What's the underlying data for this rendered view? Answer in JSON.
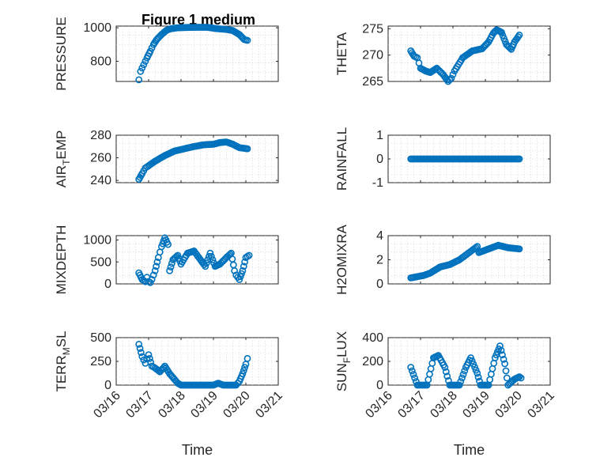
{
  "figure_title": "Figure 1 medium",
  "marker_color": "#0072BD",
  "chart_data": [
    {
      "type": "scatter",
      "panel": "pressure",
      "ylabel": "PRESSURE",
      "ylabel_sub": "",
      "ylabel_tail": "",
      "xlabel": "",
      "ylim": [
        680,
        1010
      ],
      "yticks": [
        800,
        1000
      ],
      "xlim": [
        0,
        5
      ],
      "show_xticklabels": false,
      "key": [
        [
          0.7,
          690
        ],
        [
          0.75,
          740
        ],
        [
          0.85,
          780
        ],
        [
          0.95,
          820
        ],
        [
          1.05,
          860
        ],
        [
          1.15,
          900
        ],
        [
          1.25,
          930
        ],
        [
          1.4,
          960
        ],
        [
          1.55,
          985
        ],
        [
          1.7,
          995
        ],
        [
          1.9,
          1000
        ],
        [
          2.2,
          1002
        ],
        [
          2.5,
          1003
        ],
        [
          2.8,
          1003
        ],
        [
          3.1,
          995
        ],
        [
          3.4,
          990
        ],
        [
          3.6,
          983
        ],
        [
          3.8,
          960
        ],
        [
          3.95,
          930
        ],
        [
          4.05,
          925
        ]
      ]
    },
    {
      "type": "scatter",
      "panel": "theta",
      "ylabel": "THETA",
      "ylabel_sub": "",
      "ylabel_tail": "",
      "xlabel": "",
      "ylim": [
        265,
        275.5
      ],
      "yticks": [
        265,
        270,
        275
      ],
      "xlim": [
        0,
        5
      ],
      "show_xticklabels": false,
      "key": [
        [
          0.7,
          270.8
        ],
        [
          0.8,
          269.8
        ],
        [
          0.9,
          269.5
        ],
        [
          1.0,
          267.5
        ],
        [
          1.15,
          267.0
        ],
        [
          1.3,
          266.7
        ],
        [
          1.5,
          267.5
        ],
        [
          1.7,
          266.3
        ],
        [
          1.85,
          265.0
        ],
        [
          1.95,
          265.6
        ],
        [
          2.05,
          267.0
        ],
        [
          2.3,
          269.5
        ],
        [
          2.6,
          270.8
        ],
        [
          2.9,
          271.2
        ],
        [
          3.1,
          272.5
        ],
        [
          3.25,
          274.2
        ],
        [
          3.35,
          274.8
        ],
        [
          3.5,
          274.3
        ],
        [
          3.65,
          272.0
        ],
        [
          3.8,
          271.1
        ],
        [
          3.9,
          272.5
        ],
        [
          4.05,
          273.8
        ]
      ]
    },
    {
      "type": "scatter",
      "panel": "air_temp",
      "ylabel": "AIR",
      "ylabel_sub": "T",
      "ylabel_tail": "EMP",
      "xlabel": "",
      "ylim": [
        238,
        280
      ],
      "yticks": [
        240,
        260,
        280
      ],
      "xlim": [
        0,
        5
      ],
      "show_xticklabels": false,
      "key": [
        [
          0.7,
          241
        ],
        [
          0.8,
          246
        ],
        [
          0.9,
          251
        ],
        [
          1.0,
          253
        ],
        [
          1.2,
          257
        ],
        [
          1.5,
          262
        ],
        [
          1.8,
          266
        ],
        [
          2.1,
          268
        ],
        [
          2.4,
          270
        ],
        [
          2.7,
          271.5
        ],
        [
          3.0,
          272
        ],
        [
          3.2,
          273.5
        ],
        [
          3.4,
          274
        ],
        [
          3.6,
          272
        ],
        [
          3.8,
          269
        ],
        [
          4.05,
          268
        ]
      ]
    },
    {
      "type": "scatter",
      "panel": "rainfall",
      "ylabel": "RAINFALL",
      "ylabel_sub": "",
      "ylabel_tail": "",
      "xlabel": "",
      "ylim": [
        -1,
        1
      ],
      "yticks": [
        -1,
        0,
        1
      ],
      "xlim": [
        0,
        5
      ],
      "show_xticklabels": false,
      "key": [
        [
          0.7,
          0
        ],
        [
          4.05,
          0
        ]
      ]
    },
    {
      "type": "scatter",
      "panel": "mixdepth",
      "ylabel": "MIXDEPTH",
      "ylabel_sub": "",
      "ylabel_tail": "",
      "xlabel": "",
      "ylim": [
        0,
        1100
      ],
      "yticks": [
        0,
        500,
        1000
      ],
      "xlim": [
        0,
        5
      ],
      "show_xticklabels": false,
      "key": [
        [
          0.7,
          250
        ],
        [
          0.8,
          100
        ],
        [
          0.9,
          50
        ],
        [
          0.95,
          150
        ],
        [
          1.0,
          50
        ],
        [
          1.05,
          30
        ],
        [
          1.1,
          100
        ],
        [
          1.2,
          300
        ],
        [
          1.3,
          600
        ],
        [
          1.4,
          850
        ],
        [
          1.5,
          1050
        ],
        [
          1.6,
          900
        ],
        [
          1.65,
          300
        ],
        [
          1.75,
          550
        ],
        [
          1.9,
          650
        ],
        [
          2.0,
          450
        ],
        [
          2.2,
          700
        ],
        [
          2.4,
          750
        ],
        [
          2.6,
          550
        ],
        [
          2.75,
          400
        ],
        [
          2.9,
          700
        ],
        [
          3.05,
          400
        ],
        [
          3.2,
          450
        ],
        [
          3.4,
          600
        ],
        [
          3.55,
          700
        ],
        [
          3.65,
          300
        ],
        [
          3.7,
          200
        ],
        [
          3.8,
          100
        ],
        [
          3.9,
          300
        ],
        [
          4.0,
          600
        ],
        [
          4.1,
          650
        ]
      ]
    },
    {
      "type": "scatter",
      "panel": "h2omixra",
      "ylabel": "H2OMIXRA",
      "ylabel_sub": "",
      "ylabel_tail": "",
      "xlabel": "",
      "ylim": [
        0,
        4
      ],
      "yticks": [
        0,
        2,
        4
      ],
      "xlim": [
        0,
        5
      ],
      "show_xticklabels": false,
      "key": [
        [
          0.7,
          0.5
        ],
        [
          0.9,
          0.6
        ],
        [
          1.1,
          0.7
        ],
        [
          1.3,
          0.9
        ],
        [
          1.6,
          1.4
        ],
        [
          1.9,
          1.6
        ],
        [
          2.2,
          2.0
        ],
        [
          2.5,
          2.6
        ],
        [
          2.75,
          3.1
        ],
        [
          2.8,
          2.6
        ],
        [
          3.1,
          2.9
        ],
        [
          3.4,
          3.2
        ],
        [
          3.7,
          3.0
        ],
        [
          4.05,
          2.9
        ]
      ]
    },
    {
      "type": "scatter",
      "panel": "terr_msl",
      "ylabel": "TERR",
      "ylabel_sub": "M",
      "ylabel_tail": "SL",
      "xlabel": "Time",
      "ylim": [
        0,
        500
      ],
      "yticks": [
        0,
        250,
        500
      ],
      "xlim": [
        0,
        5
      ],
      "show_xticklabels": true,
      "xtick_labels": [
        "03/16",
        "03/17",
        "03/18",
        "03/19",
        "03/20",
        "03/21"
      ],
      "key": [
        [
          0.7,
          430
        ],
        [
          0.8,
          300
        ],
        [
          0.9,
          230
        ],
        [
          1.0,
          320
        ],
        [
          1.1,
          200
        ],
        [
          1.2,
          180
        ],
        [
          1.35,
          140
        ],
        [
          1.5,
          200
        ],
        [
          1.65,
          120
        ],
        [
          1.8,
          60
        ],
        [
          1.9,
          20
        ],
        [
          2.0,
          0
        ],
        [
          2.5,
          0
        ],
        [
          3.0,
          0
        ],
        [
          3.15,
          20
        ],
        [
          3.3,
          0
        ],
        [
          3.7,
          0
        ],
        [
          3.8,
          40
        ],
        [
          3.9,
          120
        ],
        [
          4.0,
          220
        ],
        [
          4.05,
          280
        ]
      ]
    },
    {
      "type": "scatter",
      "panel": "sun_flux",
      "ylabel": "SUN",
      "ylabel_sub": "F",
      "ylabel_tail": "LUX",
      "xlabel": "Time",
      "ylim": [
        0,
        400
      ],
      "yticks": [
        0,
        200,
        400
      ],
      "xlim": [
        0,
        5
      ],
      "show_xticklabels": true,
      "xtick_labels": [
        "03/16",
        "03/17",
        "03/18",
        "03/19",
        "03/20",
        "03/21"
      ],
      "key": [
        [
          0.7,
          150
        ],
        [
          0.9,
          0
        ],
        [
          1.2,
          0
        ],
        [
          1.4,
          230
        ],
        [
          1.55,
          250
        ],
        [
          1.75,
          150
        ],
        [
          1.9,
          0
        ],
        [
          2.2,
          0
        ],
        [
          2.4,
          150
        ],
        [
          2.55,
          230
        ],
        [
          2.75,
          100
        ],
        [
          2.85,
          0
        ],
        [
          3.1,
          0
        ],
        [
          3.3,
          230
        ],
        [
          3.45,
          330
        ],
        [
          3.6,
          180
        ],
        [
          3.7,
          0
        ],
        [
          3.9,
          50
        ],
        [
          4.05,
          70
        ],
        [
          4.1,
          60
        ]
      ]
    }
  ]
}
